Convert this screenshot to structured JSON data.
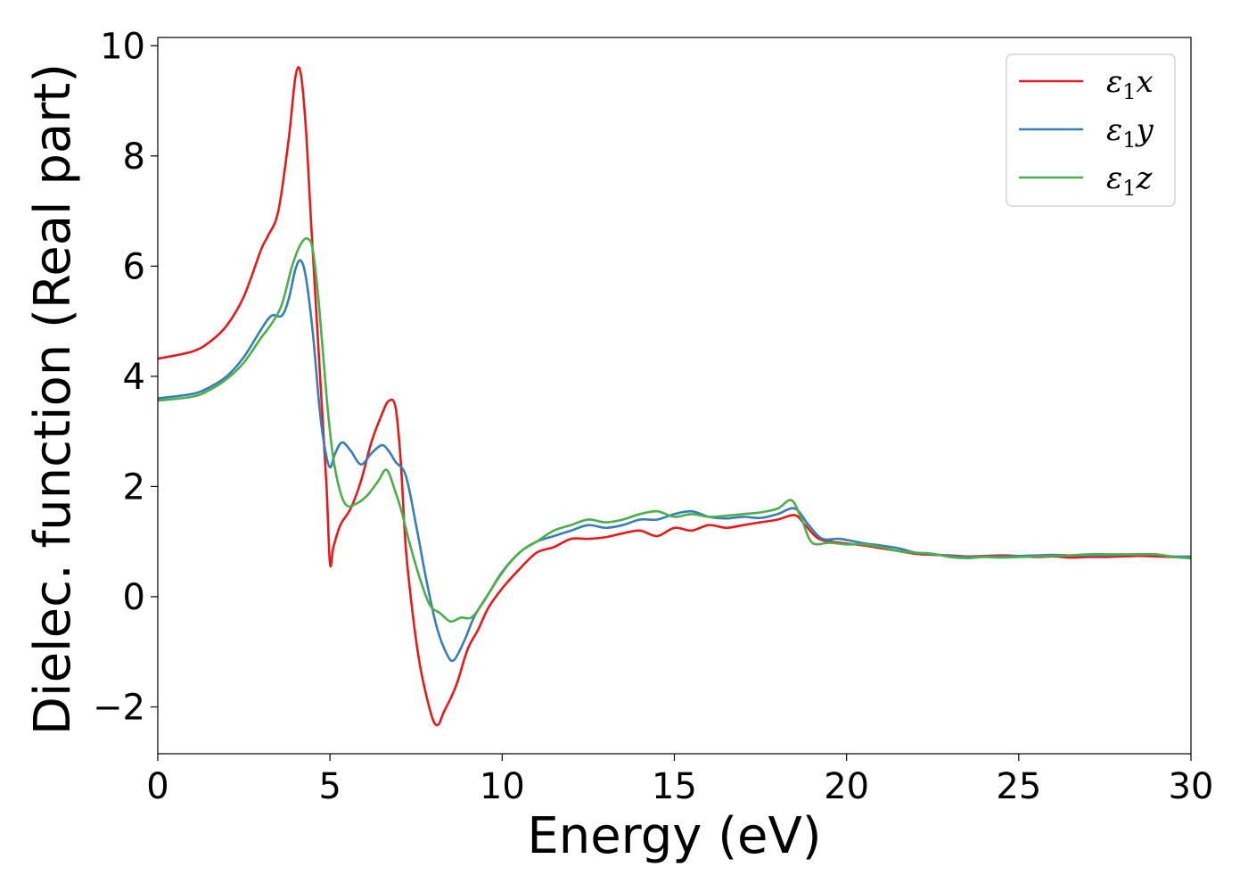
{
  "chart_data": {
    "type": "line",
    "xlabel": "Energy (eV)",
    "ylabel": "Dielec. function (Real part)",
    "xlim": [
      0,
      30
    ],
    "ylim": [
      -2.85,
      10.15
    ],
    "xticks": [
      0,
      5,
      10,
      15,
      20,
      25,
      30
    ],
    "xtick_labels": [
      "0",
      "5",
      "10",
      "15",
      "20",
      "25",
      "30"
    ],
    "yticks": [
      -2,
      0,
      2,
      4,
      6,
      8,
      10
    ],
    "ytick_labels": [
      "−2",
      "0",
      "2",
      "4",
      "6",
      "8",
      "10"
    ],
    "grid": false,
    "legend_position": "top-right",
    "series": [
      {
        "name": "ε1x",
        "legend": {
          "symbol": "ε",
          "sub": "1",
          "suffix": "x"
        },
        "color": "#e41a1c",
        "x": [
          0,
          1,
          1.5,
          2,
          2.5,
          3,
          3.2,
          3.5,
          3.8,
          4.0,
          4.15,
          4.3,
          4.45,
          4.6,
          4.75,
          4.9,
          5.0,
          5.1,
          5.3,
          5.6,
          5.9,
          6.2,
          6.5,
          6.7,
          6.9,
          7.05,
          7.2,
          7.4,
          7.6,
          7.8,
          8.0,
          8.15,
          8.3,
          8.5,
          8.7,
          9.0,
          9.3,
          9.6,
          10,
          10.5,
          11,
          11.5,
          12,
          12.5,
          13,
          13.5,
          14,
          14.5,
          15,
          15.5,
          16,
          16.5,
          17,
          17.5,
          18,
          18.5,
          18.8,
          19.2,
          19.8,
          20.5,
          21,
          21.5,
          22,
          22.5,
          23,
          23.5,
          24,
          24.5,
          25,
          25.5,
          26,
          26.5,
          27,
          27.5,
          28,
          28.5,
          29,
          29.5,
          30
        ],
        "y": [
          4.32,
          4.45,
          4.62,
          4.92,
          5.45,
          6.3,
          6.55,
          7.0,
          8.3,
          9.45,
          9.5,
          8.5,
          6.8,
          5.2,
          3.6,
          2.0,
          0.6,
          0.9,
          1.3,
          1.6,
          2.1,
          2.8,
          3.3,
          3.55,
          3.45,
          2.5,
          0.9,
          -0.3,
          -1.2,
          -1.8,
          -2.25,
          -2.32,
          -2.1,
          -1.85,
          -1.55,
          -0.95,
          -0.6,
          -0.2,
          0.15,
          0.5,
          0.8,
          0.9,
          1.05,
          1.05,
          1.08,
          1.15,
          1.2,
          1.1,
          1.25,
          1.2,
          1.3,
          1.25,
          1.3,
          1.35,
          1.4,
          1.48,
          1.3,
          1.05,
          0.98,
          0.93,
          0.88,
          0.83,
          0.78,
          0.76,
          0.75,
          0.73,
          0.74,
          0.75,
          0.74,
          0.72,
          0.73,
          0.71,
          0.72,
          0.72,
          0.73,
          0.74,
          0.73,
          0.72,
          0.72
        ]
      },
      {
        "name": "ε1y",
        "legend": {
          "symbol": "ε",
          "sub": "1",
          "suffix": "y"
        },
        "color": "#377eb8",
        "x": [
          0,
          1,
          1.5,
          2,
          2.5,
          3,
          3.3,
          3.6,
          3.8,
          4.0,
          4.15,
          4.3,
          4.5,
          4.7,
          4.85,
          5.0,
          5.15,
          5.35,
          5.6,
          5.9,
          6.2,
          6.5,
          6.7,
          6.9,
          7.2,
          7.5,
          7.8,
          8.1,
          8.4,
          8.6,
          8.9,
          9.2,
          9.6,
          10,
          10.5,
          11,
          11.5,
          12,
          12.5,
          13,
          13.5,
          14,
          14.5,
          15,
          15.5,
          16,
          16.5,
          17,
          17.5,
          18,
          18.5,
          18.9,
          19.3,
          19.8,
          20.5,
          21,
          21.5,
          22,
          22.5,
          23,
          23.5,
          24,
          24.5,
          25,
          25.5,
          26,
          26.5,
          27,
          27.5,
          28,
          28.5,
          29,
          29.5,
          30
        ],
        "y": [
          3.6,
          3.68,
          3.8,
          4.0,
          4.35,
          4.85,
          5.1,
          5.1,
          5.4,
          5.95,
          6.1,
          5.8,
          4.8,
          3.4,
          2.7,
          2.35,
          2.6,
          2.8,
          2.65,
          2.4,
          2.6,
          2.75,
          2.65,
          2.45,
          2.2,
          1.3,
          0.3,
          -0.55,
          -1.05,
          -1.15,
          -0.8,
          -0.35,
          0.05,
          0.45,
          0.8,
          1.0,
          1.1,
          1.2,
          1.3,
          1.25,
          1.3,
          1.4,
          1.4,
          1.5,
          1.55,
          1.45,
          1.42,
          1.45,
          1.43,
          1.5,
          1.6,
          1.3,
          1.05,
          1.05,
          0.97,
          0.93,
          0.88,
          0.8,
          0.77,
          0.74,
          0.72,
          0.73,
          0.73,
          0.74,
          0.75,
          0.76,
          0.75,
          0.75,
          0.75,
          0.76,
          0.77,
          0.76,
          0.73,
          0.73
        ]
      },
      {
        "name": "ε1z",
        "legend": {
          "symbol": "ε",
          "sub": "1",
          "suffix": "z"
        },
        "color": "#4daf4a",
        "x": [
          0,
          1,
          1.5,
          2,
          2.5,
          3,
          3.3,
          3.6,
          3.9,
          4.15,
          4.35,
          4.5,
          4.65,
          4.8,
          4.95,
          5.1,
          5.3,
          5.5,
          5.8,
          6.1,
          6.4,
          6.65,
          6.9,
          7.1,
          7.3,
          7.6,
          7.9,
          8.2,
          8.5,
          8.8,
          9.1,
          9.4,
          9.8,
          10.2,
          10.6,
          11,
          11.5,
          12,
          12.5,
          13,
          13.5,
          14,
          14.5,
          15,
          15.5,
          16,
          16.5,
          17,
          17.5,
          18,
          18.4,
          18.7,
          19.0,
          19.5,
          20,
          20.5,
          21,
          21.5,
          22,
          22.5,
          23,
          23.5,
          24,
          24.5,
          25,
          25.5,
          26,
          26.5,
          27,
          27.5,
          28,
          28.5,
          29,
          29.5,
          30
        ],
        "y": [
          3.56,
          3.63,
          3.75,
          3.95,
          4.25,
          4.7,
          4.95,
          5.3,
          6.0,
          6.4,
          6.5,
          6.3,
          5.5,
          4.4,
          3.3,
          2.5,
          1.9,
          1.65,
          1.7,
          1.85,
          2.1,
          2.3,
          1.9,
          1.5,
          1.0,
          0.35,
          -0.15,
          -0.3,
          -0.45,
          -0.38,
          -0.38,
          -0.15,
          0.25,
          0.6,
          0.85,
          1.0,
          1.2,
          1.3,
          1.4,
          1.35,
          1.4,
          1.5,
          1.55,
          1.45,
          1.5,
          1.45,
          1.47,
          1.5,
          1.53,
          1.6,
          1.75,
          1.4,
          0.98,
          0.98,
          0.95,
          0.95,
          0.9,
          0.83,
          0.8,
          0.78,
          0.72,
          0.7,
          0.72,
          0.71,
          0.72,
          0.73,
          0.74,
          0.75,
          0.77,
          0.77,
          0.77,
          0.77,
          0.77,
          0.72,
          0.7
        ]
      }
    ]
  }
}
